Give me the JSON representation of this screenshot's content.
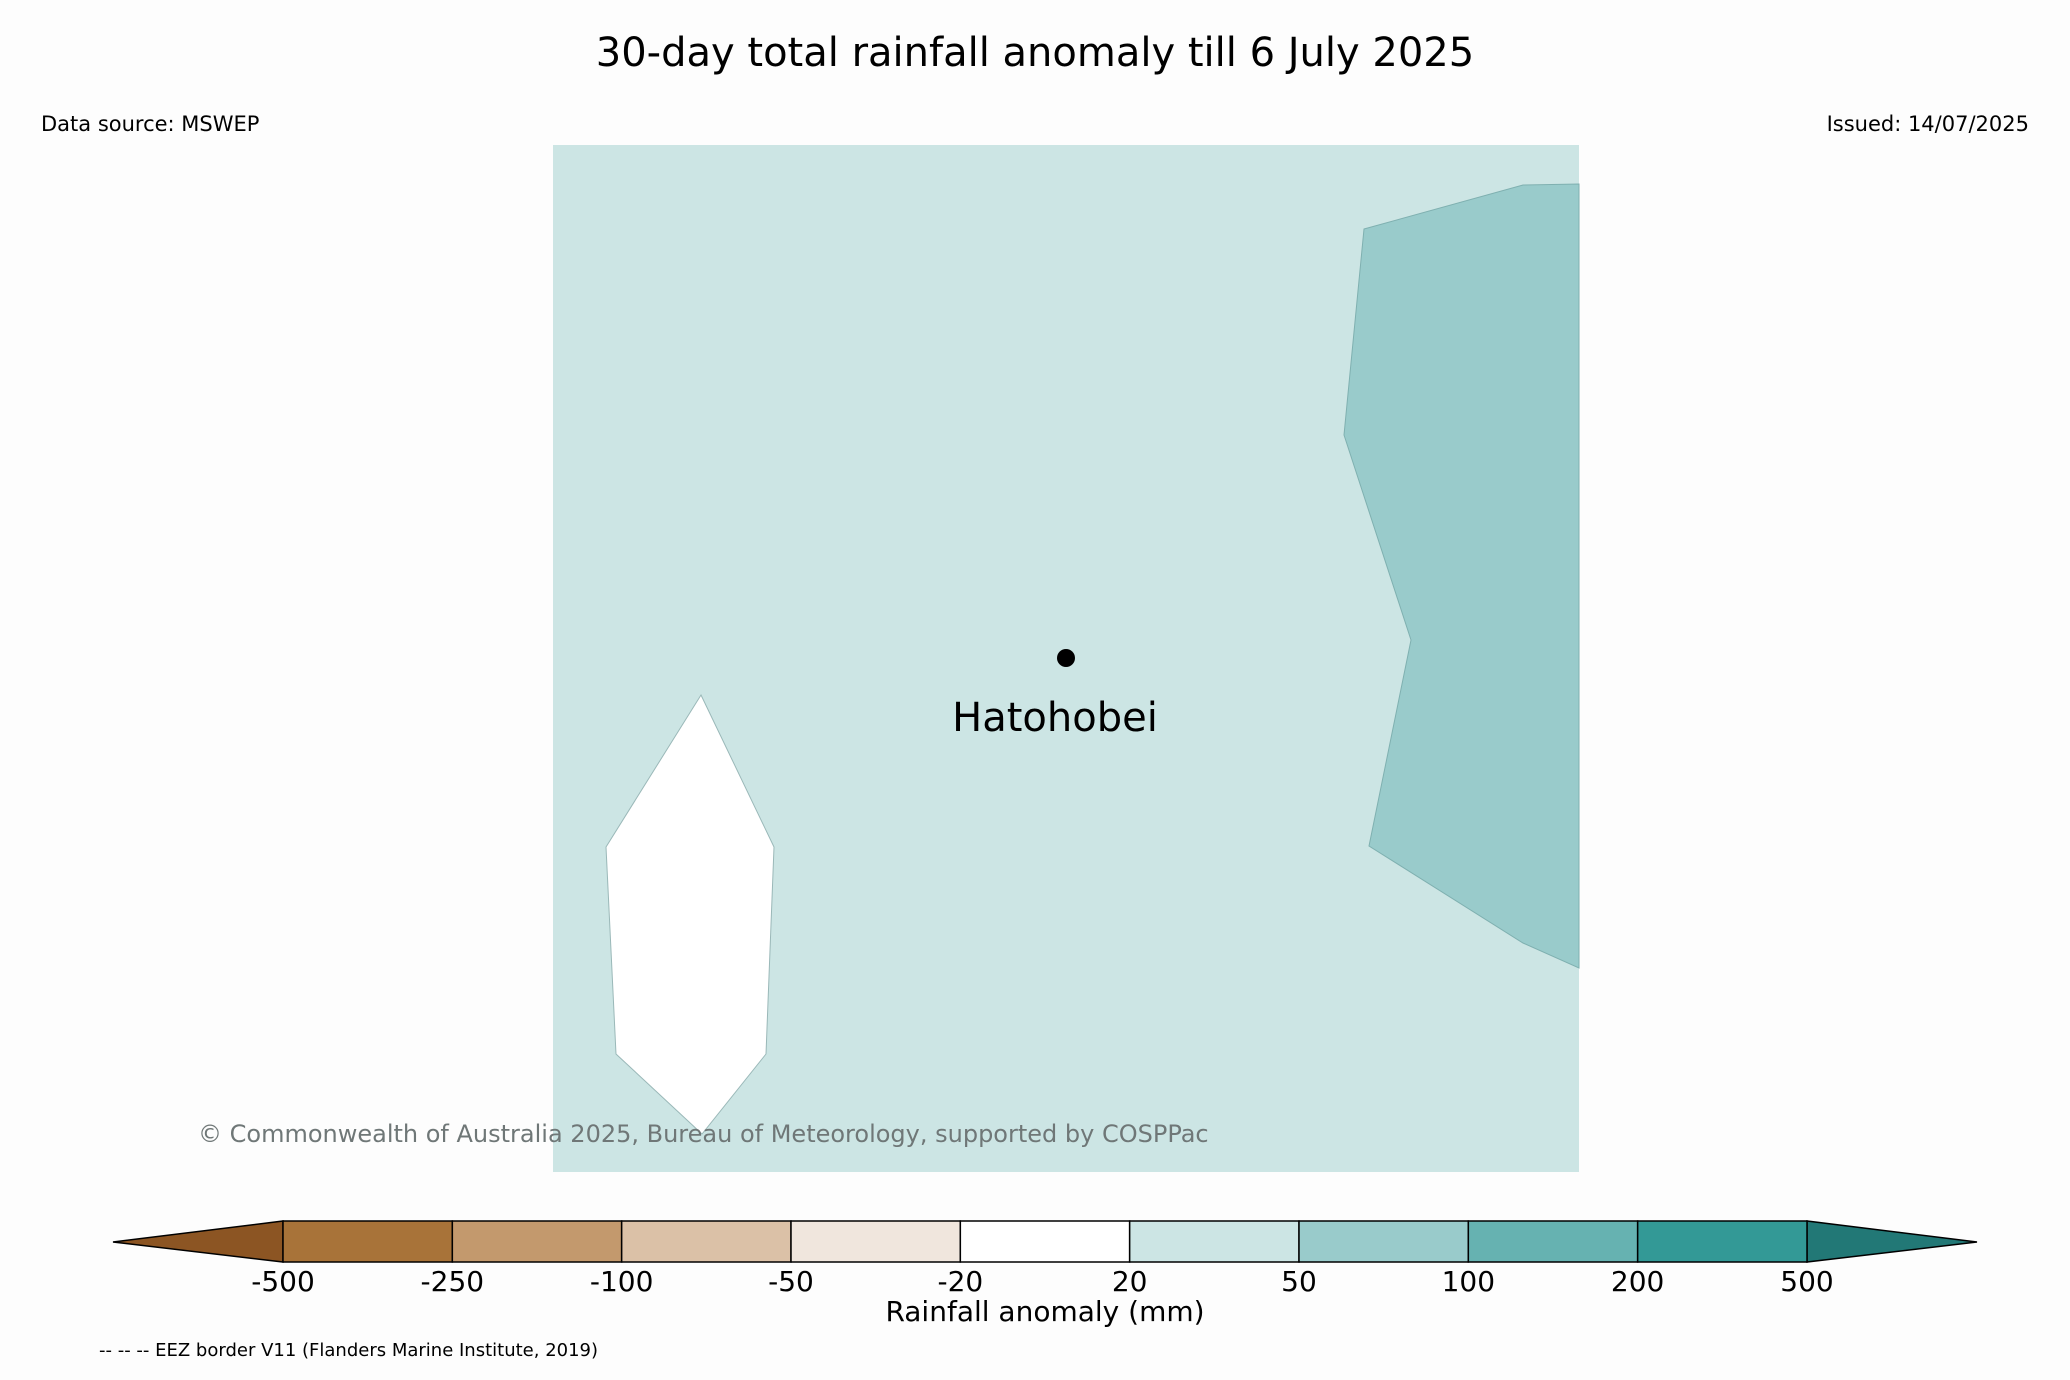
{
  "title": "30-day total rainfall anomaly till 6 July 2025",
  "data_source": "Data source: MSWEP",
  "issued": "Issued: 14/07/2025",
  "place_label": "Hatohobei",
  "copyright": "© Commonwealth of Australia 2025, Bureau of Meteorology, supported by COSPPac",
  "colorbar": {
    "label": "Rainfall anomaly (mm)",
    "ticks": [
      "-500",
      "-250",
      "-100",
      "-50",
      "-20",
      "20",
      "50",
      "100",
      "200",
      "500"
    ],
    "colors": [
      "#a87339",
      "#c3996d",
      "#dbc1a7",
      "#f0e6dd",
      "#ffffff",
      "#cce5e4",
      "#99cbcb",
      "#66b2b1",
      "#339996"
    ],
    "under_color": "#8c5523",
    "over_color": "#227876"
  },
  "map_colors": {
    "background": "#cce5e4",
    "east_region": "#99cbcb",
    "west_patch": "#ffffff"
  },
  "footnote": "-- -- -- EEZ border V11 (Flanders Marine Institute, 2019)"
}
